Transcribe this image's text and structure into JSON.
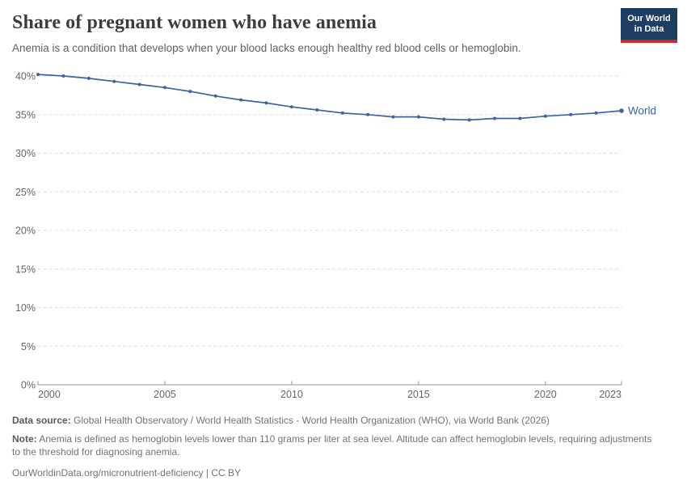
{
  "header": {
    "title": "Share of pregnant women who have anemia",
    "subtitle": "Anemia is a condition that develops when your blood lacks enough healthy red blood cells or hemoglobin.",
    "logo": {
      "line1": "Our World",
      "line2": "in Data"
    }
  },
  "chart_data": {
    "type": "line",
    "title": "Share of pregnant women who have anemia",
    "x": [
      2000,
      2001,
      2002,
      2003,
      2004,
      2005,
      2006,
      2007,
      2008,
      2009,
      2010,
      2011,
      2012,
      2013,
      2014,
      2015,
      2016,
      2017,
      2018,
      2019,
      2020,
      2021,
      2022,
      2023
    ],
    "series": [
      {
        "name": "World",
        "values": [
          40.2,
          40.0,
          39.7,
          39.3,
          38.9,
          38.5,
          38.0,
          37.4,
          36.9,
          36.5,
          36.0,
          35.6,
          35.2,
          35.0,
          34.7,
          34.7,
          34.4,
          34.3,
          34.5,
          34.5,
          34.8,
          35.0,
          35.2,
          35.5
        ]
      }
    ],
    "ylim": [
      0,
      40
    ],
    "y_ticks": [
      0,
      5,
      10,
      15,
      20,
      25,
      30,
      35,
      40
    ],
    "y_tick_suffix": "%",
    "x_ticks": [
      2000,
      2005,
      2010,
      2015,
      2020,
      2023
    ],
    "grid": "horizontal-dashed",
    "legend_position": "end-of-line",
    "end_label": "World",
    "line_color": "#3d649f",
    "axis_color": "#949494",
    "grid_color": "#dcdcdc",
    "tick_label_color": "#666666"
  },
  "footer": {
    "data_source_label": "Data source:",
    "data_source": "Global Health Observatory / World Health Statistics - World Health Organization (WHO), via World Bank (2026)",
    "note_label": "Note:",
    "note": "Anemia is defined as hemoglobin levels lower than 110 grams per liter at sea level. Altitude can affect hemoglobin levels, requiring adjustments to the threshold for diagnosing anemia.",
    "link": "OurWorldinData.org/micronutrient-deficiency | CC BY"
  },
  "colors": {
    "line": "#3d649f",
    "logo_navy": "#1d3d63",
    "logo_red": "#cc2a27",
    "title_text": "#3d3d3d",
    "subtitle_text": "#5b6266",
    "footer_text": "#737373"
  }
}
